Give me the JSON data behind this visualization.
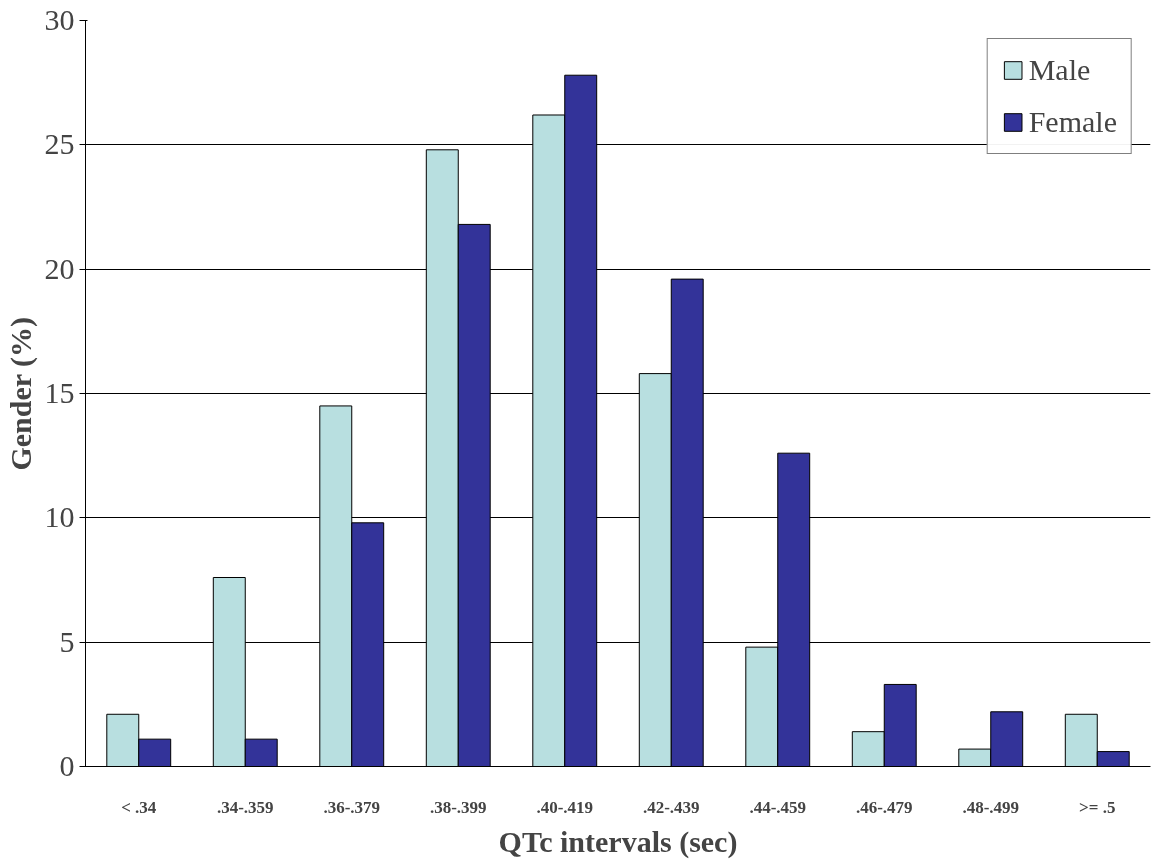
{
  "chart_data": {
    "type": "bar",
    "xlabel": "QTc intervals (sec)",
    "ylabel": "Gender (%)",
    "categories": [
      "< .34",
      ".34-.359",
      ".36-.379",
      ".38-.399",
      ".40-.419",
      ".42-.439",
      ".44-.459",
      ".46-.479",
      ".48-.499",
      ">= .5"
    ],
    "series": [
      {
        "name": "Male",
        "color": "#b8dfe0",
        "values": [
          2.1,
          7.6,
          14.5,
          24.8,
          26.2,
          15.8,
          4.8,
          1.4,
          0.7,
          2.1
        ]
      },
      {
        "name": "Female",
        "color": "#333399",
        "values": [
          1.1,
          1.1,
          9.8,
          21.8,
          27.8,
          19.6,
          12.6,
          3.3,
          2.2,
          0.6
        ]
      }
    ],
    "ylim": [
      0,
      30
    ],
    "yticks": [
      0,
      5,
      10,
      15,
      20,
      25,
      30
    ],
    "grid": "y",
    "legend": "top right"
  }
}
